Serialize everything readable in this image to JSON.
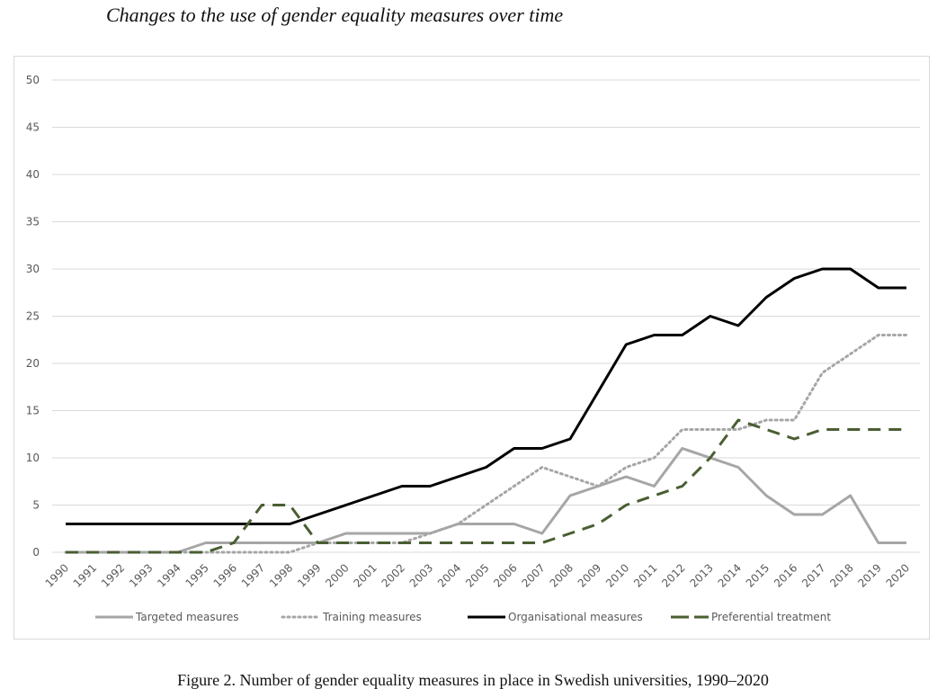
{
  "heading": "Changes to the use of gender equality measures over time",
  "caption": "Figure 2. Number of gender equality measures in place in Swedish universities, 1990–2020",
  "chart_data": {
    "type": "line",
    "title": "",
    "xlabel": "",
    "ylabel": "",
    "ylim": [
      0,
      50
    ],
    "yticks": [
      0,
      5,
      10,
      15,
      20,
      25,
      30,
      35,
      40,
      45,
      50
    ],
    "grid": true,
    "legend_position": "bottom",
    "x": [
      "1990",
      "1991",
      "1992",
      "1993",
      "1994",
      "1995",
      "1996",
      "1997",
      "1998",
      "1999",
      "2000",
      "2001",
      "2002",
      "2003",
      "2004",
      "2005",
      "2006",
      "2007",
      "2008",
      "2009",
      "2010",
      "2011",
      "2012",
      "2013",
      "2014",
      "2015",
      "2016",
      "2017",
      "2018",
      "2019",
      "2020"
    ],
    "series": [
      {
        "name": "Targeted measures",
        "style": "solid",
        "color": "#a6a6a6",
        "values": [
          0,
          0,
          0,
          0,
          0,
          1,
          1,
          1,
          1,
          1,
          2,
          2,
          2,
          2,
          3,
          3,
          3,
          2,
          6,
          7,
          8,
          7,
          11,
          10,
          9,
          6,
          4,
          4,
          6,
          1,
          1
        ]
      },
      {
        "name": "Training measures",
        "style": "dotted",
        "color": "#a6a6a6",
        "values": [
          0,
          0,
          0,
          0,
          0,
          0,
          0,
          0,
          0,
          1,
          1,
          1,
          1,
          2,
          3,
          5,
          7,
          9,
          8,
          7,
          9,
          10,
          13,
          13,
          13,
          14,
          14,
          19,
          21,
          23,
          23
        ]
      },
      {
        "name": "Organisational measures",
        "style": "solid",
        "color": "#000000",
        "values": [
          3,
          3,
          3,
          3,
          3,
          3,
          3,
          3,
          3,
          4,
          5,
          6,
          7,
          7,
          8,
          9,
          11,
          11,
          12,
          17,
          22,
          23,
          23,
          25,
          24,
          27,
          29,
          30,
          30,
          28,
          28
        ]
      },
      {
        "name": "Preferential treatment",
        "style": "dashed",
        "color": "#4a5e32",
        "values": [
          0,
          0,
          0,
          0,
          0,
          0,
          1,
          5,
          5,
          1,
          1,
          1,
          1,
          1,
          1,
          1,
          1,
          1,
          2,
          3,
          5,
          6,
          7,
          10,
          14,
          13,
          12,
          13,
          13,
          13,
          13
        ]
      }
    ]
  }
}
